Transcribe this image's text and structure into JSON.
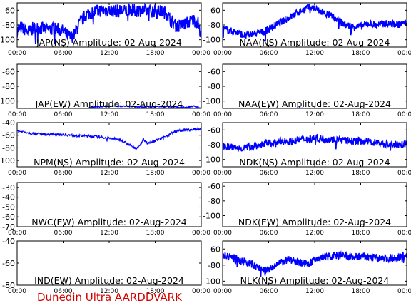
{
  "footer": "Dunedin Ultra AARDDVARK",
  "line_color": "#0000ff",
  "footer_color": "#d40000",
  "chart_data": [
    {
      "type": "line",
      "title": "JAP(NS) Amplitude: 02-Aug-2024",
      "ylim": [
        -110,
        -50
      ],
      "yticks": [
        -60,
        -80,
        -100
      ],
      "xticks": [
        "00:00",
        "06:00",
        "12:00",
        "18:00",
        "00:00"
      ],
      "noise": 9,
      "series": [
        {
          "x": [
            0,
            0.5,
            1,
            1.5,
            2,
            3,
            4,
            5,
            6,
            6.5,
            7,
            7.5,
            8,
            9,
            10,
            11,
            12,
            13,
            14,
            15,
            16,
            17,
            18,
            19,
            19.5,
            20,
            21,
            22,
            23,
            23.7,
            23.85,
            24
          ],
          "values": [
            -88,
            -83,
            -86,
            -90,
            -85,
            -84,
            -86,
            -85,
            -88,
            -93,
            -97,
            -92,
            -80,
            -66,
            -62,
            -60,
            -60,
            -61,
            -61,
            -61,
            -60,
            -61,
            -61,
            -62,
            -64,
            -74,
            -82,
            -78,
            -73,
            -78,
            -96,
            -95
          ]
        }
      ]
    },
    {
      "type": "line",
      "title": "NAA(NS) Amplitude: 02-Aug-2024",
      "ylim": [
        -110,
        -50
      ],
      "yticks": [
        -60,
        -80,
        -100
      ],
      "xticks": [
        "00:00",
        "06:00",
        "12:00",
        "18:00",
        "00:00"
      ],
      "noise": 5,
      "series": [
        {
          "x": [
            0,
            1,
            2,
            3,
            4,
            5,
            6,
            7,
            8,
            9,
            10,
            11,
            11.5,
            12,
            13,
            14,
            15,
            16,
            17,
            18,
            19,
            20,
            21,
            22,
            23,
            24
          ],
          "values": [
            -85,
            -88,
            -90,
            -95,
            -92,
            -90,
            -86,
            -80,
            -74,
            -68,
            -62,
            -57,
            -56,
            -58,
            -63,
            -67,
            -73,
            -80,
            -82,
            -82,
            -78,
            -80,
            -78,
            -79,
            -79,
            -77
          ]
        }
      ]
    },
    {
      "type": "line",
      "title": "JAP(EW) Amplitude: 02-Aug-2024",
      "ylim": [
        -110,
        -50
      ],
      "yticks": [
        -60,
        -80,
        -100
      ],
      "xticks": [
        "00:00",
        "06:00",
        "12:00",
        "18:00",
        "00:00"
      ],
      "noise": 1,
      "series": [
        {
          "x": [
            9,
            10,
            12,
            14,
            16,
            18,
            20,
            22,
            23,
            24
          ],
          "values": [
            -111,
            -108,
            -107,
            -107,
            -108,
            -108,
            -108,
            -109,
            -107,
            -110
          ]
        }
      ]
    },
    {
      "type": "line",
      "title": "NAA(EW) Amplitude: 02-Aug-2024",
      "ylim": [
        -110,
        -50
      ],
      "yticks": [
        -60,
        -80,
        -100
      ],
      "xticks": [
        "00:00",
        "06:00",
        "12:00",
        "18:00",
        "00:00"
      ],
      "noise": 0.6,
      "series": [
        {
          "x": [
            9.2,
            9.6,
            10,
            10.4
          ],
          "values": [
            -111,
            -110,
            -109,
            -110
          ]
        }
      ]
    },
    {
      "type": "line",
      "title": "NPM(NS) Amplitude: 02-Aug-2024",
      "ylim": [
        -110,
        -40
      ],
      "yticks": [
        -40,
        -60,
        -80,
        -100
      ],
      "xticks": [
        "00:00",
        "06:00",
        "12:00",
        "18:00",
        "00:00"
      ],
      "noise": 2,
      "series": [
        {
          "x": [
            0,
            1,
            2,
            3,
            4,
            5,
            6,
            7,
            8,
            9,
            10,
            11,
            12,
            13,
            14,
            15,
            15.5,
            16,
            16.5,
            17,
            18,
            19,
            20,
            21,
            22,
            23,
            24
          ],
          "values": [
            -53,
            -55,
            -57,
            -58,
            -59,
            -58,
            -59,
            -60,
            -61,
            -61,
            -62,
            -63,
            -65,
            -66,
            -70,
            -78,
            -81,
            -76,
            -66,
            -73,
            -68,
            -64,
            -57,
            -53,
            -52,
            -51,
            -50
          ]
        }
      ]
    },
    {
      "type": "line",
      "title": "NDK(NS) Amplitude: 02-Aug-2024",
      "ylim": [
        -110,
        -50
      ],
      "yticks": [
        -60,
        -80,
        -100
      ],
      "xticks": [
        "00:00",
        "06:00",
        "12:00",
        "18:00",
        "00:00"
      ],
      "noise": 5,
      "series": [
        {
          "x": [
            0,
            1,
            2,
            3,
            4,
            5,
            6,
            7,
            8,
            9,
            10,
            11,
            12,
            13,
            14,
            15,
            16,
            17,
            18,
            19,
            20,
            21,
            22,
            23,
            24
          ],
          "values": [
            -82,
            -83,
            -85,
            -84,
            -82,
            -80,
            -78,
            -77,
            -75,
            -76,
            -73,
            -72,
            -71,
            -72,
            -73,
            -73,
            -74,
            -75,
            -75,
            -76,
            -77,
            -79,
            -80,
            -80,
            -79
          ]
        }
      ]
    },
    {
      "type": "line",
      "title": "NWC(EW) Amplitude: 02-Aug-2024",
      "ylim": [
        -70,
        -25
      ],
      "yticks": [
        -30,
        -40,
        -50,
        -60,
        -70
      ],
      "xticks": [
        "00:00",
        "06:00",
        "12:00",
        "18:00",
        "00:00"
      ],
      "noise": 0,
      "series": []
    },
    {
      "type": "line",
      "title": "NDK(EW) Amplitude: 02-Aug-2024",
      "ylim": [
        -115,
        -55
      ],
      "yticks": [
        -60,
        -80,
        -100
      ],
      "xticks": [
        "00:00",
        "06:00",
        "12:00",
        "18:00",
        "00:00"
      ],
      "noise": 0,
      "series": []
    },
    {
      "type": "line",
      "title": "IND(EW) Amplitude: 02-Aug-2024",
      "ylim": [
        -80,
        -40
      ],
      "yticks": [
        -40,
        -60,
        -80
      ],
      "xticks": [
        "00:00",
        "06:00",
        "12:00",
        "18:00",
        "00:00"
      ],
      "noise": 0,
      "series": []
    },
    {
      "type": "line",
      "title": "NLK(NS) Amplitude: 02-Aug-2024",
      "ylim": [
        -105,
        -50
      ],
      "yticks": [
        -60,
        -80,
        -100
      ],
      "xticks": [
        "00:00",
        "06:00",
        "12:00",
        "18:00",
        "00:00"
      ],
      "noise": 5,
      "series": [
        {
          "x": [
            0,
            1,
            2,
            3,
            4,
            5,
            6,
            7,
            8,
            9,
            10,
            11,
            12,
            13,
            14,
            15,
            16,
            17,
            18,
            19,
            20,
            21,
            22,
            23,
            24
          ],
          "values": [
            -68,
            -70,
            -73,
            -76,
            -80,
            -85,
            -86,
            -80,
            -75,
            -73,
            -76,
            -79,
            -74,
            -70,
            -69,
            -68,
            -69,
            -70,
            -69,
            -70,
            -71,
            -72,
            -71,
            -70,
            -67
          ]
        }
      ]
    }
  ]
}
